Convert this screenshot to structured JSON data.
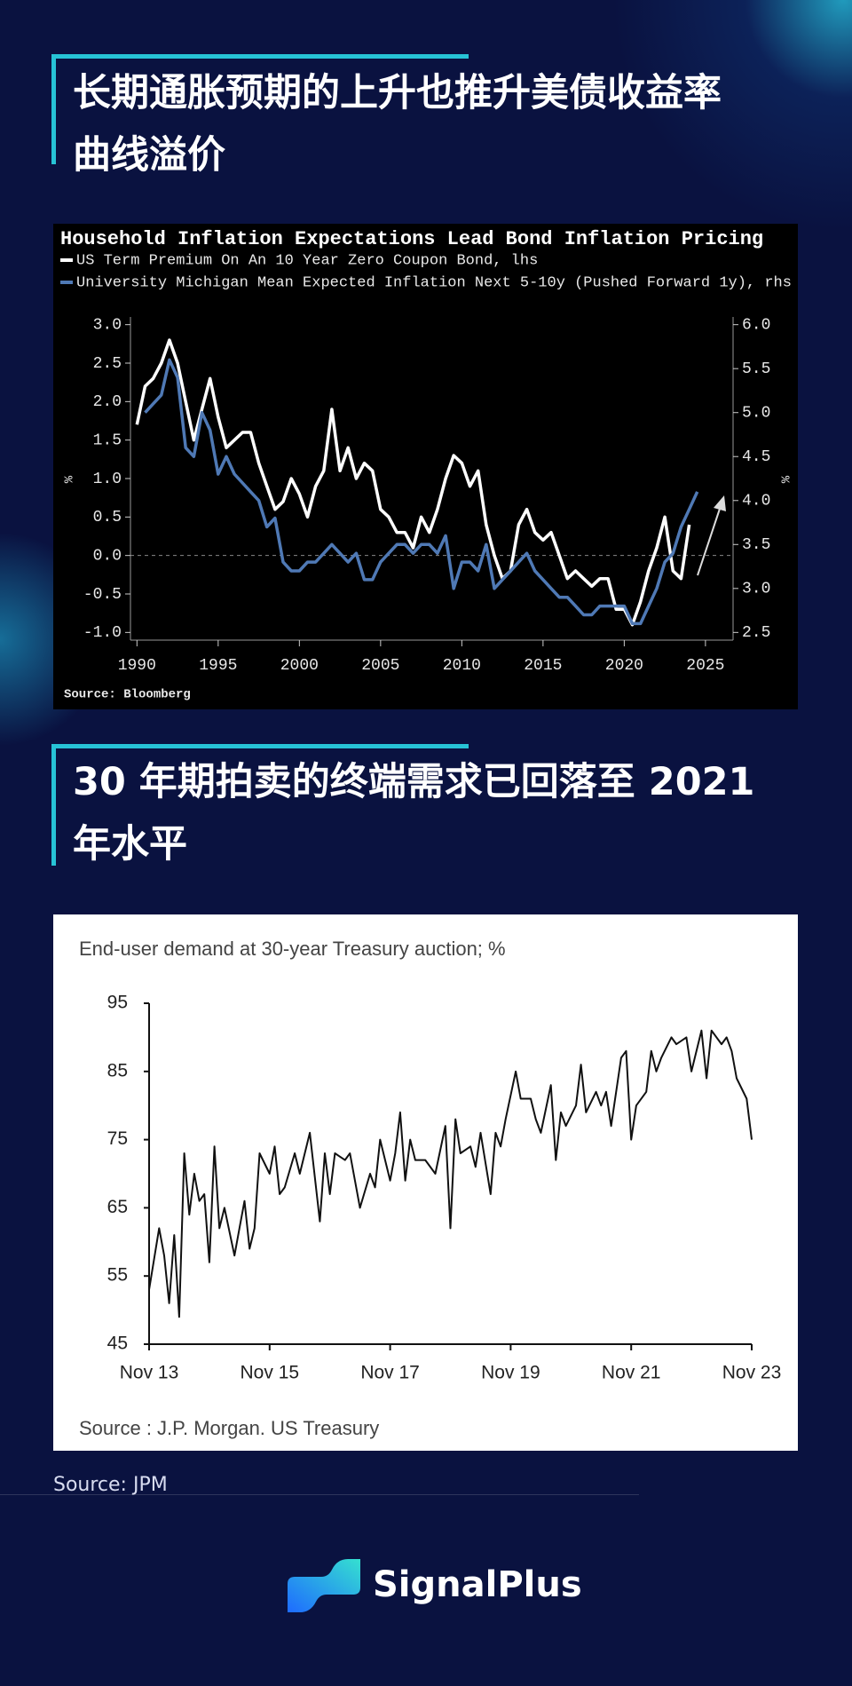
{
  "heading_1": [
    "长期通胀预期的上升也推升美债收益率",
    "曲线溢价"
  ],
  "heading_2": [
    "30 年期拍卖的终端需求已回落至 2021",
    "年水平"
  ],
  "source": "Source: JPM",
  "brand": "SignalPlus",
  "chart_data": [
    {
      "type": "line",
      "title": "Household Inflation Expectations Lead Bond Inflation Pricing",
      "source": "Source: Bloomberg",
      "ylabel": "%",
      "y2label": "%",
      "x": [
        1990,
        1990.5,
        1991,
        1991.5,
        1992,
        1992.5,
        1993,
        1993.5,
        1994,
        1994.5,
        1995,
        1995.5,
        1996,
        1996.5,
        1997,
        1997.5,
        1998,
        1998.5,
        1999,
        1999.5,
        2000,
        2000.5,
        2001,
        2001.5,
        2002,
        2002.5,
        2003,
        2003.5,
        2004,
        2004.5,
        2005,
        2005.5,
        2006,
        2006.5,
        2007,
        2007.5,
        2008,
        2008.5,
        2009,
        2009.5,
        2010,
        2010.5,
        2011,
        2011.5,
        2012,
        2012.5,
        2013,
        2013.5,
        2014,
        2014.5,
        2015,
        2015.5,
        2016,
        2016.5,
        2017,
        2017.5,
        2018,
        2018.5,
        2019,
        2019.5,
        2020,
        2020.5,
        2021,
        2021.5,
        2022,
        2022.5,
        2023,
        2023.5,
        2024,
        2024.5
      ],
      "series": [
        {
          "name": "US Term Premium On An 10 Year Zero Coupon Bond, lhs",
          "color": "#ffffff",
          "values": [
            1.7,
            2.2,
            2.3,
            2.5,
            2.8,
            2.5,
            2.0,
            1.5,
            1.9,
            2.3,
            1.8,
            1.4,
            1.5,
            1.6,
            1.6,
            1.2,
            0.9,
            0.6,
            0.7,
            1.0,
            0.8,
            0.5,
            0.9,
            1.1,
            1.9,
            1.1,
            1.4,
            1.0,
            1.2,
            1.1,
            0.6,
            0.5,
            0.3,
            0.3,
            0.1,
            0.5,
            0.3,
            0.6,
            1.0,
            1.3,
            1.2,
            0.9,
            1.1,
            0.4,
            0.0,
            -0.3,
            -0.2,
            0.4,
            0.6,
            0.3,
            0.2,
            0.3,
            0.0,
            -0.3,
            -0.2,
            -0.3,
            -0.4,
            -0.3,
            -0.3,
            -0.7,
            -0.7,
            -0.9,
            -0.6,
            -0.2,
            0.1,
            0.5,
            -0.2,
            -0.3,
            0.4,
            null
          ]
        },
        {
          "name": "University Michigan Mean Expected Inflation Next 5-10y (Pushed Forward 1y), rhs",
          "color": "#4f79b5",
          "axis": "y2",
          "values": [
            null,
            5.0,
            5.1,
            5.2,
            5.6,
            5.4,
            4.6,
            4.5,
            5.0,
            4.8,
            4.3,
            4.5,
            4.3,
            4.2,
            4.1,
            4.0,
            3.7,
            3.8,
            3.3,
            3.2,
            3.2,
            3.3,
            3.3,
            3.4,
            3.5,
            3.4,
            3.3,
            3.4,
            3.1,
            3.1,
            3.3,
            3.4,
            3.5,
            3.5,
            3.4,
            3.5,
            3.5,
            3.4,
            3.6,
            3.0,
            3.3,
            3.3,
            3.2,
            3.5,
            3.0,
            3.1,
            3.2,
            3.3,
            3.4,
            3.2,
            3.1,
            3.0,
            2.9,
            2.9,
            2.8,
            2.7,
            2.7,
            2.8,
            2.8,
            2.8,
            2.8,
            2.6,
            2.6,
            2.8,
            3.0,
            3.3,
            3.4,
            3.7,
            3.9,
            4.1
          ]
        }
      ],
      "xlim": [
        1989.6,
        2026.7
      ],
      "xticks": [
        1990,
        1995,
        2000,
        2005,
        2010,
        2015,
        2020,
        2025
      ],
      "ylim": [
        -1.1,
        3.1
      ],
      "yticks": [
        {
          "value": -1,
          "label": "-1.0"
        },
        -0.5,
        {
          "value": 0,
          "label": "0.0"
        },
        0.5,
        {
          "value": 1,
          "label": "1.0"
        },
        1.5,
        {
          "value": 2,
          "label": "2.0"
        },
        2.5,
        {
          "value": 3,
          "label": "3.0"
        }
      ],
      "y2lim": [
        2.4125,
        6.0875
      ],
      "y2ticks": [
        2.5,
        {
          "value": 3,
          "label": "3.0"
        },
        3.5,
        {
          "value": 4,
          "label": "4.0"
        },
        4.5,
        {
          "value": 5,
          "label": "5.0"
        },
        5.5,
        {
          "value": 6,
          "label": "6.0"
        }
      ],
      "grid": false
    },
    {
      "type": "line",
      "title": "End-user demand at 30-year Treasury auction; %",
      "source": "Source : J.P. Morgan. US Treasury",
      "color": "#111111",
      "x": [
        0,
        2,
        3,
        4,
        5,
        6,
        7,
        8,
        9,
        10,
        11,
        12,
        13,
        14,
        15,
        17,
        18,
        19,
        20,
        21,
        22,
        24,
        25,
        26,
        27,
        29,
        30,
        32,
        34,
        35,
        36,
        37,
        39,
        40,
        42,
        44,
        45,
        46,
        48,
        49,
        50,
        51,
        52,
        53,
        55,
        57,
        59,
        60,
        61,
        62,
        64,
        65,
        66,
        68,
        69,
        70,
        71,
        73,
        74,
        76,
        77,
        78,
        80,
        81,
        82,
        83,
        85,
        86,
        87,
        89,
        90,
        91,
        92,
        94,
        95,
        96,
        97,
        99,
        100,
        101,
        102,
        104,
        105,
        107,
        108,
        110,
        111,
        112,
        114,
        115,
        116,
        117,
        119,
        120
      ],
      "values": [
        53,
        62,
        58,
        51,
        61,
        49,
        73,
        64,
        70,
        66,
        67,
        57,
        74,
        62,
        65,
        58,
        62,
        66,
        59,
        62,
        73,
        70,
        74,
        67,
        68,
        73,
        70,
        76,
        63,
        73,
        67,
        73,
        72,
        73,
        65,
        70,
        68,
        75,
        69,
        73,
        79,
        69,
        75,
        72,
        72,
        70,
        77,
        62,
        78,
        73,
        74,
        71,
        76,
        67,
        76,
        74,
        78,
        85,
        81,
        81,
        78,
        76,
        83,
        72,
        79,
        77,
        80,
        86,
        79,
        82,
        80,
        82,
        77,
        87,
        88,
        75,
        80,
        82,
        88,
        85,
        87,
        90,
        89,
        90,
        85,
        91,
        84,
        91,
        89,
        90,
        88,
        84,
        81,
        75
      ],
      "xlim": [
        0,
        120
      ],
      "xticks": [
        {
          "value": 0,
          "label": "Nov 13"
        },
        {
          "value": 24,
          "label": "Nov 15"
        },
        {
          "value": 48,
          "label": "Nov 17"
        },
        {
          "value": 72,
          "label": "Nov 19"
        },
        {
          "value": 96,
          "label": "Nov 21"
        },
        {
          "value": 120,
          "label": "Nov 23"
        }
      ],
      "ylim": [
        45,
        95
      ],
      "yticks": [
        45,
        55,
        65,
        75,
        85,
        95
      ],
      "grid": false
    }
  ]
}
